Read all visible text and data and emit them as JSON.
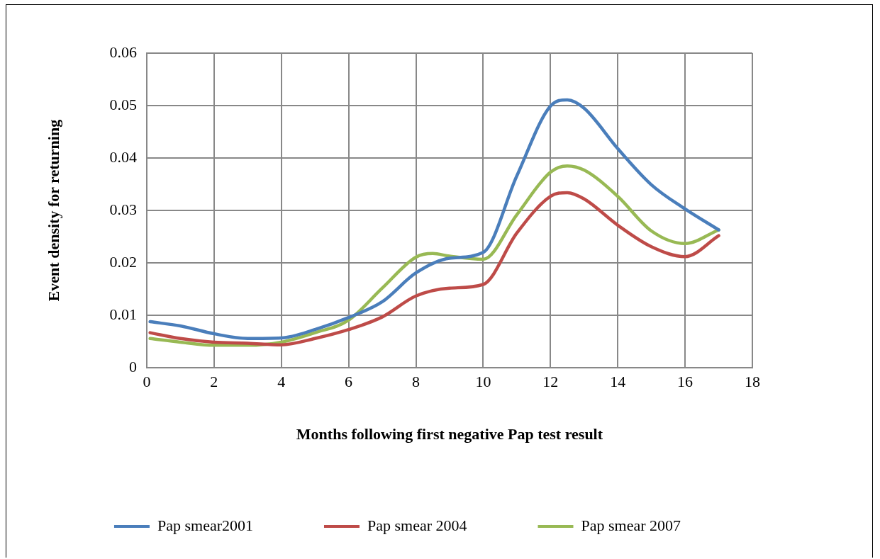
{
  "chart_data": {
    "type": "line",
    "xlabel": "Months following first negative Pap test result",
    "ylabel": "Event density for returning",
    "series": [
      {
        "name": "Pap smear2001",
        "color": "#4a7ebb",
        "x": [
          0.1,
          1,
          2,
          3,
          4,
          5,
          6,
          7,
          8,
          9,
          10,
          11,
          12,
          12.5,
          13,
          14,
          15,
          16,
          17
        ],
        "values": [
          0.0088,
          0.008,
          0.0065,
          0.0056,
          0.0057,
          0.0073,
          0.0096,
          0.0126,
          0.0181,
          0.0209,
          0.022,
          0.0366,
          0.0499,
          0.0511,
          0.0495,
          0.0418,
          0.0349,
          0.0303,
          0.0263
        ]
      },
      {
        "name": "Pap smear 2004",
        "color": "#be4b48",
        "x": [
          0.1,
          1,
          2,
          3,
          4,
          5,
          6,
          7,
          8,
          9,
          10,
          11,
          12,
          12.5,
          13,
          14,
          15,
          16,
          17
        ],
        "values": [
          0.0067,
          0.0056,
          0.0049,
          0.0047,
          0.0044,
          0.0056,
          0.0073,
          0.0097,
          0.0137,
          0.0152,
          0.0159,
          0.0257,
          0.0327,
          0.0334,
          0.0322,
          0.0272,
          0.0231,
          0.0212,
          0.0252
        ]
      },
      {
        "name": "Pap smear 2007",
        "color": "#98b954",
        "x": [
          0.1,
          1,
          2,
          3,
          4,
          5,
          6,
          7,
          8,
          8.5,
          9,
          10,
          11,
          12,
          12.5,
          13,
          14,
          15,
          16,
          17
        ],
        "values": [
          0.0056,
          0.0049,
          0.0043,
          0.0043,
          0.0049,
          0.0067,
          0.0091,
          0.0152,
          0.0211,
          0.0218,
          0.0213,
          0.0207,
          0.0292,
          0.0373,
          0.0385,
          0.0377,
          0.0327,
          0.0261,
          0.0237,
          0.0263
        ]
      }
    ],
    "xlim": [
      0,
      18
    ],
    "xticks": [
      0,
      2,
      4,
      6,
      8,
      10,
      12,
      14,
      16,
      18
    ],
    "ylim": [
      0,
      0.06
    ],
    "yticks": [
      0,
      0.01,
      0.02,
      0.03,
      0.04,
      0.05,
      0.06
    ],
    "grid": true,
    "legend": "bottom",
    "marker": "none",
    "line_style": "solid"
  }
}
